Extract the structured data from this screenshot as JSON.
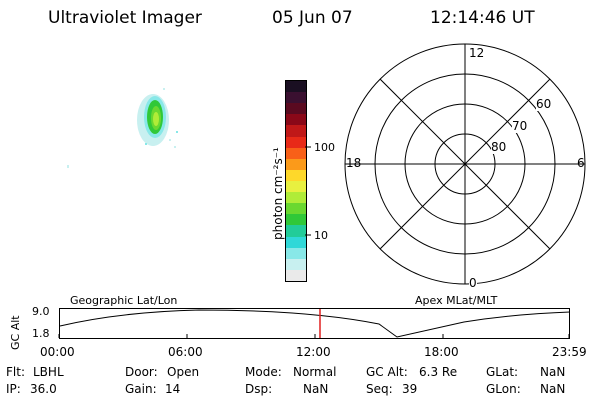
{
  "header": {
    "title": "Ultraviolet Imager",
    "date": "05 Jun 07",
    "time": "12:14:46 UT"
  },
  "colorbar": {
    "unit_label": "photon cm⁻²s⁻¹",
    "ticks": [
      "100",
      "10"
    ],
    "colors": [
      "#1a0f22",
      "#3a1030",
      "#5a0a20",
      "#8a0818",
      "#c01818",
      "#e82a18",
      "#f86018",
      "#fb9a1a",
      "#fed82a",
      "#e8f040",
      "#b0ec38",
      "#6ad830",
      "#30c838",
      "#22cc99",
      "#30d8d8",
      "#88e8e8",
      "#c8f0f0",
      "#eaeaea"
    ]
  },
  "polar": {
    "top_label": "12",
    "bottom_label": "0",
    "left_label": "18",
    "right_label": "6",
    "ring_labels": [
      "60",
      "70",
      "80"
    ]
  },
  "timeline": {
    "ylabel": "GC Alt",
    "left_title": "Geographic Lat/Lon",
    "right_title": "Apex MLat/MLT",
    "y_ticks": [
      "9.0",
      "1.8"
    ],
    "x_ticks": [
      "00:00",
      "06:00",
      "12:00",
      "18:00",
      "23:59"
    ],
    "marker_color": "#e02020"
  },
  "info": {
    "flt_label": "Flt:",
    "flt_value": "LBHL",
    "ip_label": "IP:",
    "ip_value": "36.0",
    "door_label": "Door:",
    "door_value": "Open",
    "gain_label": "Gain:",
    "gain_value": "14",
    "mode_label": "Mode:",
    "mode_value": "Normal",
    "dsp_label": "Dsp:",
    "dsp_value": "NaN",
    "gcalt_label": "GC Alt:",
    "gcalt_value": "6.3 Re",
    "seq_label": "Seq:",
    "seq_value": "39",
    "glat_label": "GLat:",
    "glat_value": "NaN",
    "glon_label": "GLon:",
    "glon_value": "NaN"
  }
}
